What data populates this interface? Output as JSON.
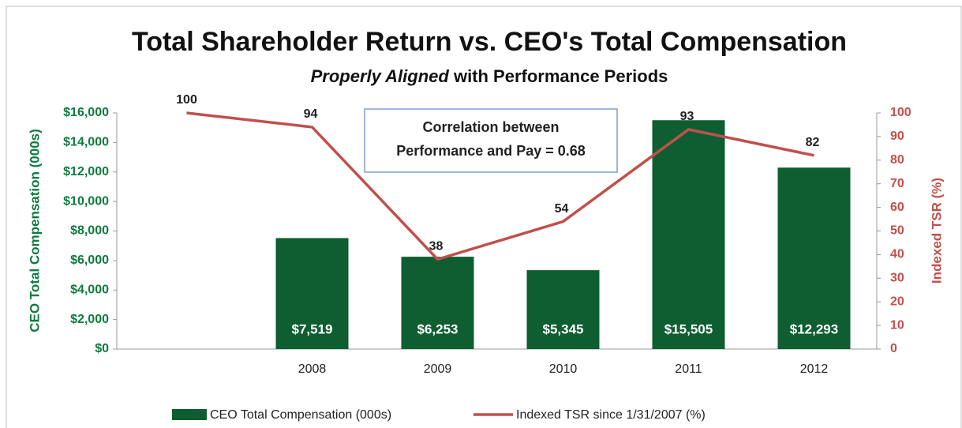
{
  "chart_data": {
    "type": "bar",
    "title": "Total Shareholder Return vs. CEO's Total Compensation",
    "subtitle": [
      "Properly Aligned",
      "with Performance Periods"
    ],
    "annotation": [
      "Correlation between",
      "Performance and Pay = 0.68"
    ],
    "categories": [
      null,
      "2008",
      "2009",
      "2010",
      "2011",
      "2012"
    ],
    "y_label": "CEO Total Compensation (000s)",
    "y2_label": "Indexed TSR (%)",
    "ylim": [
      0,
      16000
    ],
    "yticks": [
      {
        "value": 0,
        "label": "$0"
      },
      {
        "value": 2000,
        "label": "$2,000"
      },
      {
        "value": 4000,
        "label": "$4,000"
      },
      {
        "value": 6000,
        "label": "$6,000"
      },
      {
        "value": 8000,
        "label": "$8,000"
      },
      {
        "value": 10000,
        "label": "$10,000"
      },
      {
        "value": 12000,
        "label": "$12,000"
      },
      {
        "value": 14000,
        "label": "$14,000"
      },
      {
        "value": 16000,
        "label": "$16,000"
      }
    ],
    "y2lim": [
      0,
      100
    ],
    "y2ticks": [
      0,
      10,
      20,
      30,
      40,
      50,
      60,
      70,
      80,
      90,
      100
    ],
    "grid": false,
    "legend": "bottom",
    "series": [
      {
        "name": "CEO Total Compensation (000s)",
        "type": "bar",
        "color": "#0e5e32",
        "values": [
          null,
          7519,
          6253,
          5345,
          15505,
          12293
        ],
        "value_labels": [
          null,
          "$7,519",
          "$6,253",
          "$5,345",
          "$15,505",
          "$12,293"
        ]
      },
      {
        "name": "Indexed TSR since 1/31/2007 (%)",
        "type": "line",
        "axis": "y2",
        "color": "#c0504d",
        "values": [
          100,
          94,
          38,
          54,
          93,
          82
        ]
      }
    ]
  }
}
